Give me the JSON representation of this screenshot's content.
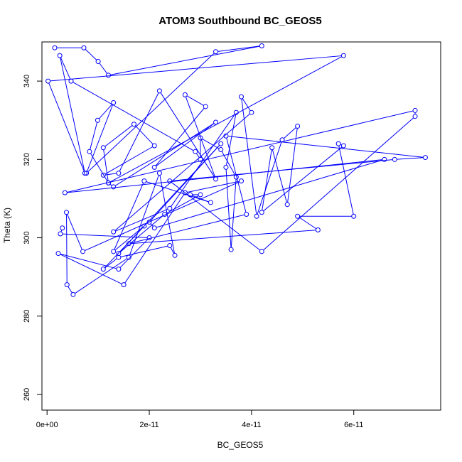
{
  "chart_data": {
    "type": "line",
    "title": "ATOM3 Southbound BC_GEOS5",
    "xlabel": "BC_GEOS5",
    "ylabel": "Theta (K)",
    "xlim": [
      -1e-12,
      7.7e-11
    ],
    "ylim": [
      256,
      350
    ],
    "xticks": [
      0,
      2e-11,
      4e-11,
      6e-11
    ],
    "xtick_labels": [
      "0e+00",
      "2e-11",
      "4e-11",
      "6e-11"
    ],
    "yticks": [
      260,
      280,
      300,
      320,
      340
    ],
    "ytick_labels": [
      "260",
      "280",
      "300",
      "320",
      "340"
    ],
    "grid": false,
    "legend": "none",
    "colors": {
      "series": "#0000ff",
      "frame": "#000000",
      "background": "#ffffff"
    },
    "markers": "open-circle",
    "series": [
      {
        "x": [
          1.5e-12,
          7.2e-12,
          1e-11,
          1.2e-11,
          4.2e-11,
          3.3e-11,
          7.7e-12,
          1.3e-11,
          9.9e-12,
          8.3e-12,
          1.2e-11,
          1.1e-11,
          1.7e-11,
          2.1e-11,
          1.1e-11,
          1.4e-11,
          2.2e-11,
          3.3e-11,
          2.7e-11,
          3.1e-11,
          2.1e-11,
          3.3e-11,
          1.3e-11,
          1.2e-11,
          5.8e-11,
          2e-13,
          7.4e-12,
          2.5e-12,
          4.7e-12,
          2.9e-11,
          3e-11,
          3e-11,
          3.4e-11,
          3.7e-11,
          3.6e-11,
          3.5e-11,
          3.7e-11,
          2.4e-11,
          1.3e-11,
          4e-11,
          3.8e-11,
          4.1e-11,
          4.6e-11,
          4.9e-11,
          4.7e-11,
          4.4e-11,
          4.2e-11,
          5.8e-11,
          5.7e-11,
          6e-11,
          4.9e-11,
          5.3e-11,
          1.6e-11,
          3.9e-11,
          3.5e-11,
          7.4e-11,
          6.8e-11,
          2.4e-11,
          4.2e-11,
          7.2e-11,
          7.2e-11,
          3.5e-12,
          6.6e-11,
          2.1e-11,
          2e-11,
          3.4e-11,
          1.4e-11,
          2.3e-11,
          3e-11,
          2.8e-11,
          3.2e-11,
          1.9e-11,
          1.3e-11,
          1.9e-11,
          1.1e-11,
          1.4e-11,
          2.4e-11,
          2.5e-11,
          2.2e-11,
          1.6e-11,
          5.1e-12,
          3.9e-12,
          3.8e-12,
          7e-12,
          3.8e-11,
          2.7e-11,
          1.5e-11,
          2.2e-12,
          1.4e-11,
          2e-11,
          2.6e-12,
          3e-12
        ],
        "y": [
          348.5,
          348.5,
          345,
          341.5,
          349,
          347.5,
          316.5,
          334.5,
          330,
          322,
          314,
          323,
          329,
          323.5,
          316,
          316.5,
          337.5,
          315,
          336.5,
          333.5,
          318,
          329.5,
          313,
          314,
          346.5,
          340,
          316.5,
          346.5,
          340,
          322,
          320,
          325.5,
          322.5,
          315.5,
          297,
          318,
          332,
          307.5,
          301.5,
          332,
          336,
          305.5,
          325,
          328.5,
          308.5,
          323,
          306.5,
          323.5,
          324,
          305.5,
          305.5,
          302,
          298.5,
          306,
          326,
          320.5,
          320,
          314.5,
          296.5,
          331,
          332.5,
          311.5,
          320,
          302.5,
          304,
          324,
          296,
          306,
          311,
          311,
          309,
          314.5,
          296.5,
          303,
          292,
          295,
          298,
          295.5,
          316.5,
          295,
          285.5,
          288,
          306.5,
          296.5,
          314.5,
          311.5,
          288,
          296,
          292,
          300,
          301,
          302.5
        ]
      }
    ]
  }
}
